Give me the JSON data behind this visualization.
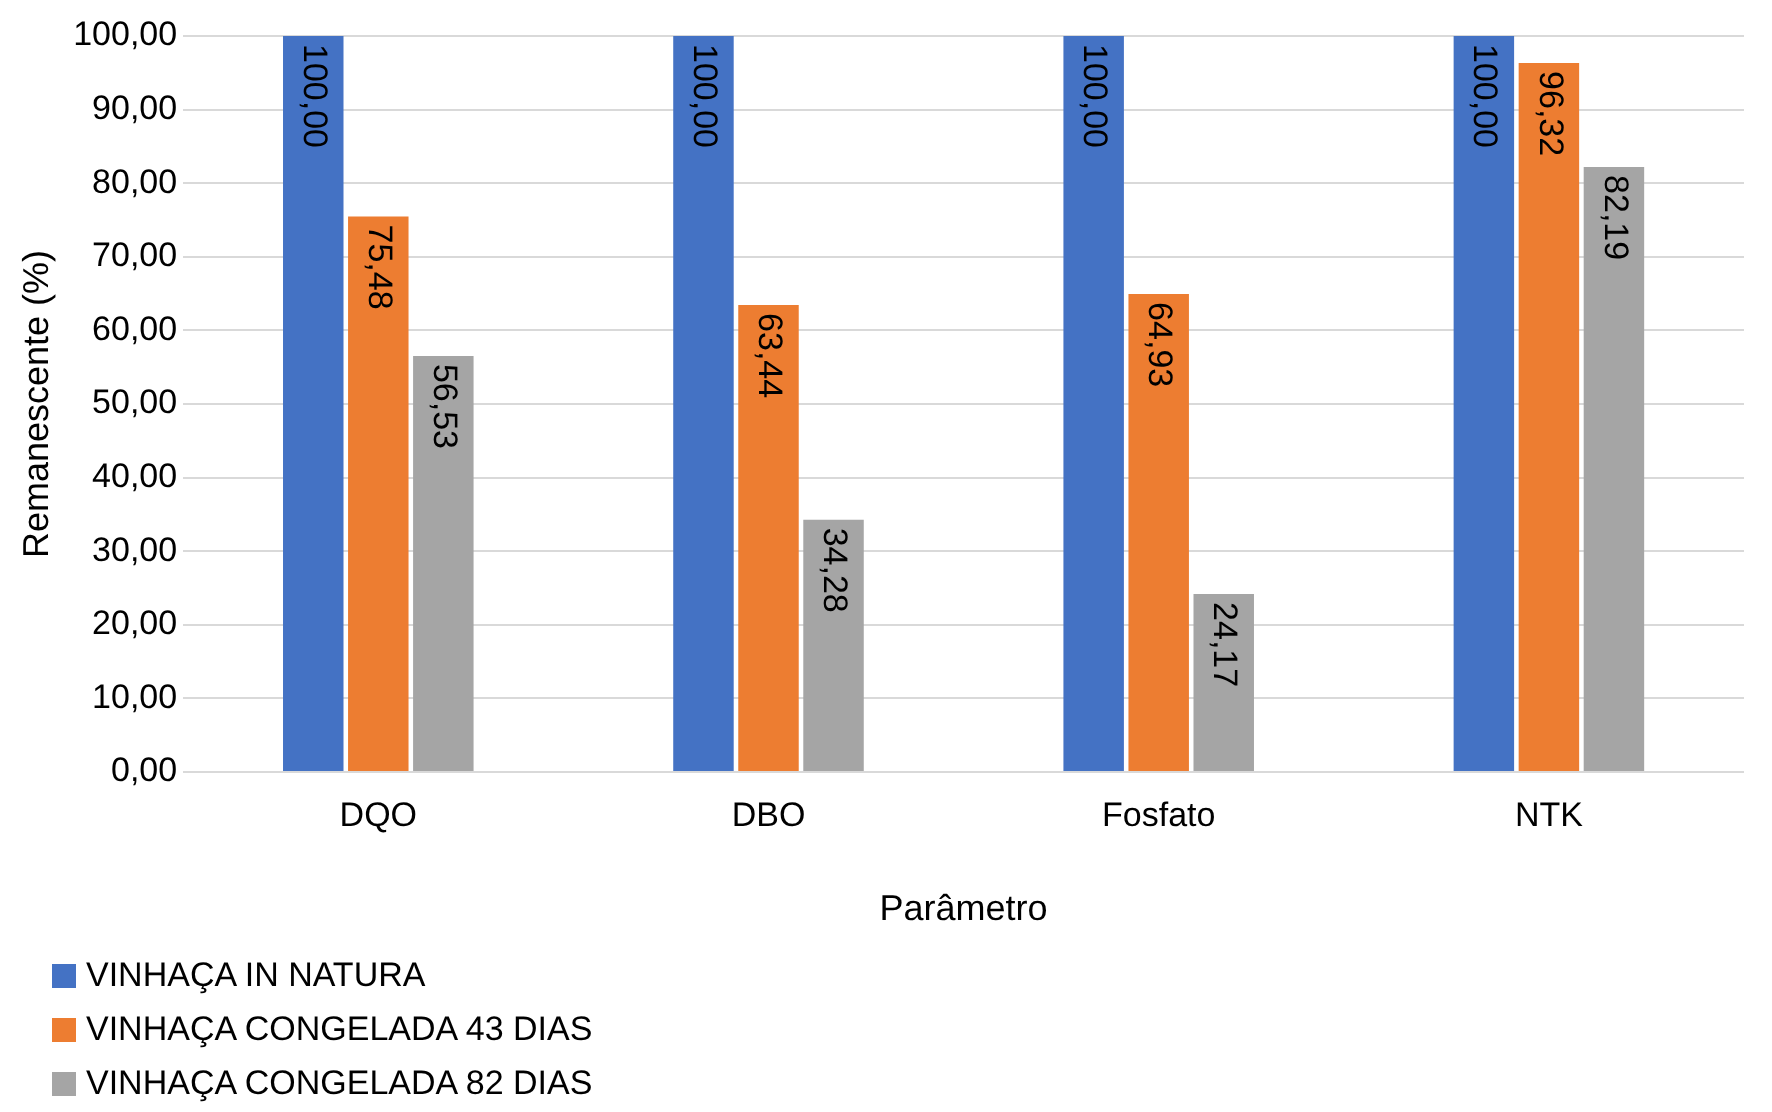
{
  "chart_data": {
    "type": "bar",
    "xlabel": "Parâmetro",
    "ylabel": "Remanescente (%)",
    "categories": [
      "DQO",
      "DBO",
      "Fosfato",
      "NTK"
    ],
    "series": [
      {
        "name": "VINHAÇA IN NATURA",
        "color": "#4472c4",
        "values": [
          100,
          100,
          100,
          100
        ],
        "value_labels": [
          "100,00",
          "100,00",
          "100,00",
          "100,00"
        ]
      },
      {
        "name": "VINHAÇA CONGELADA 43 DIAS",
        "color": "#ed7d31",
        "values": [
          75.48,
          63.44,
          64.93,
          96.32
        ],
        "value_labels": [
          "75,48",
          "63,44",
          "64,93",
          "96,32"
        ]
      },
      {
        "name": "VINHAÇA CONGELADA 82 DIAS",
        "color": "#a5a5a5",
        "values": [
          56.53,
          34.28,
          24.17,
          82.19
        ],
        "value_labels": [
          "56,53",
          "34,28",
          "24,17",
          "82,19"
        ]
      }
    ],
    "ylim": [
      0,
      100
    ],
    "yticks": [
      {
        "value": 0,
        "label": "0,00"
      },
      {
        "value": 10,
        "label": "10,00"
      },
      {
        "value": 20,
        "label": "20,00"
      },
      {
        "value": 30,
        "label": "30,00"
      },
      {
        "value": 40,
        "label": "40,00"
      },
      {
        "value": 50,
        "label": "50,00"
      },
      {
        "value": 60,
        "label": "60,00"
      },
      {
        "value": 70,
        "label": "70,00"
      },
      {
        "value": 80,
        "label": "80,00"
      },
      {
        "value": 90,
        "label": "90,00"
      },
      {
        "value": 100,
        "label": "100,00"
      }
    ],
    "grid": "y",
    "legend": "bottom"
  }
}
